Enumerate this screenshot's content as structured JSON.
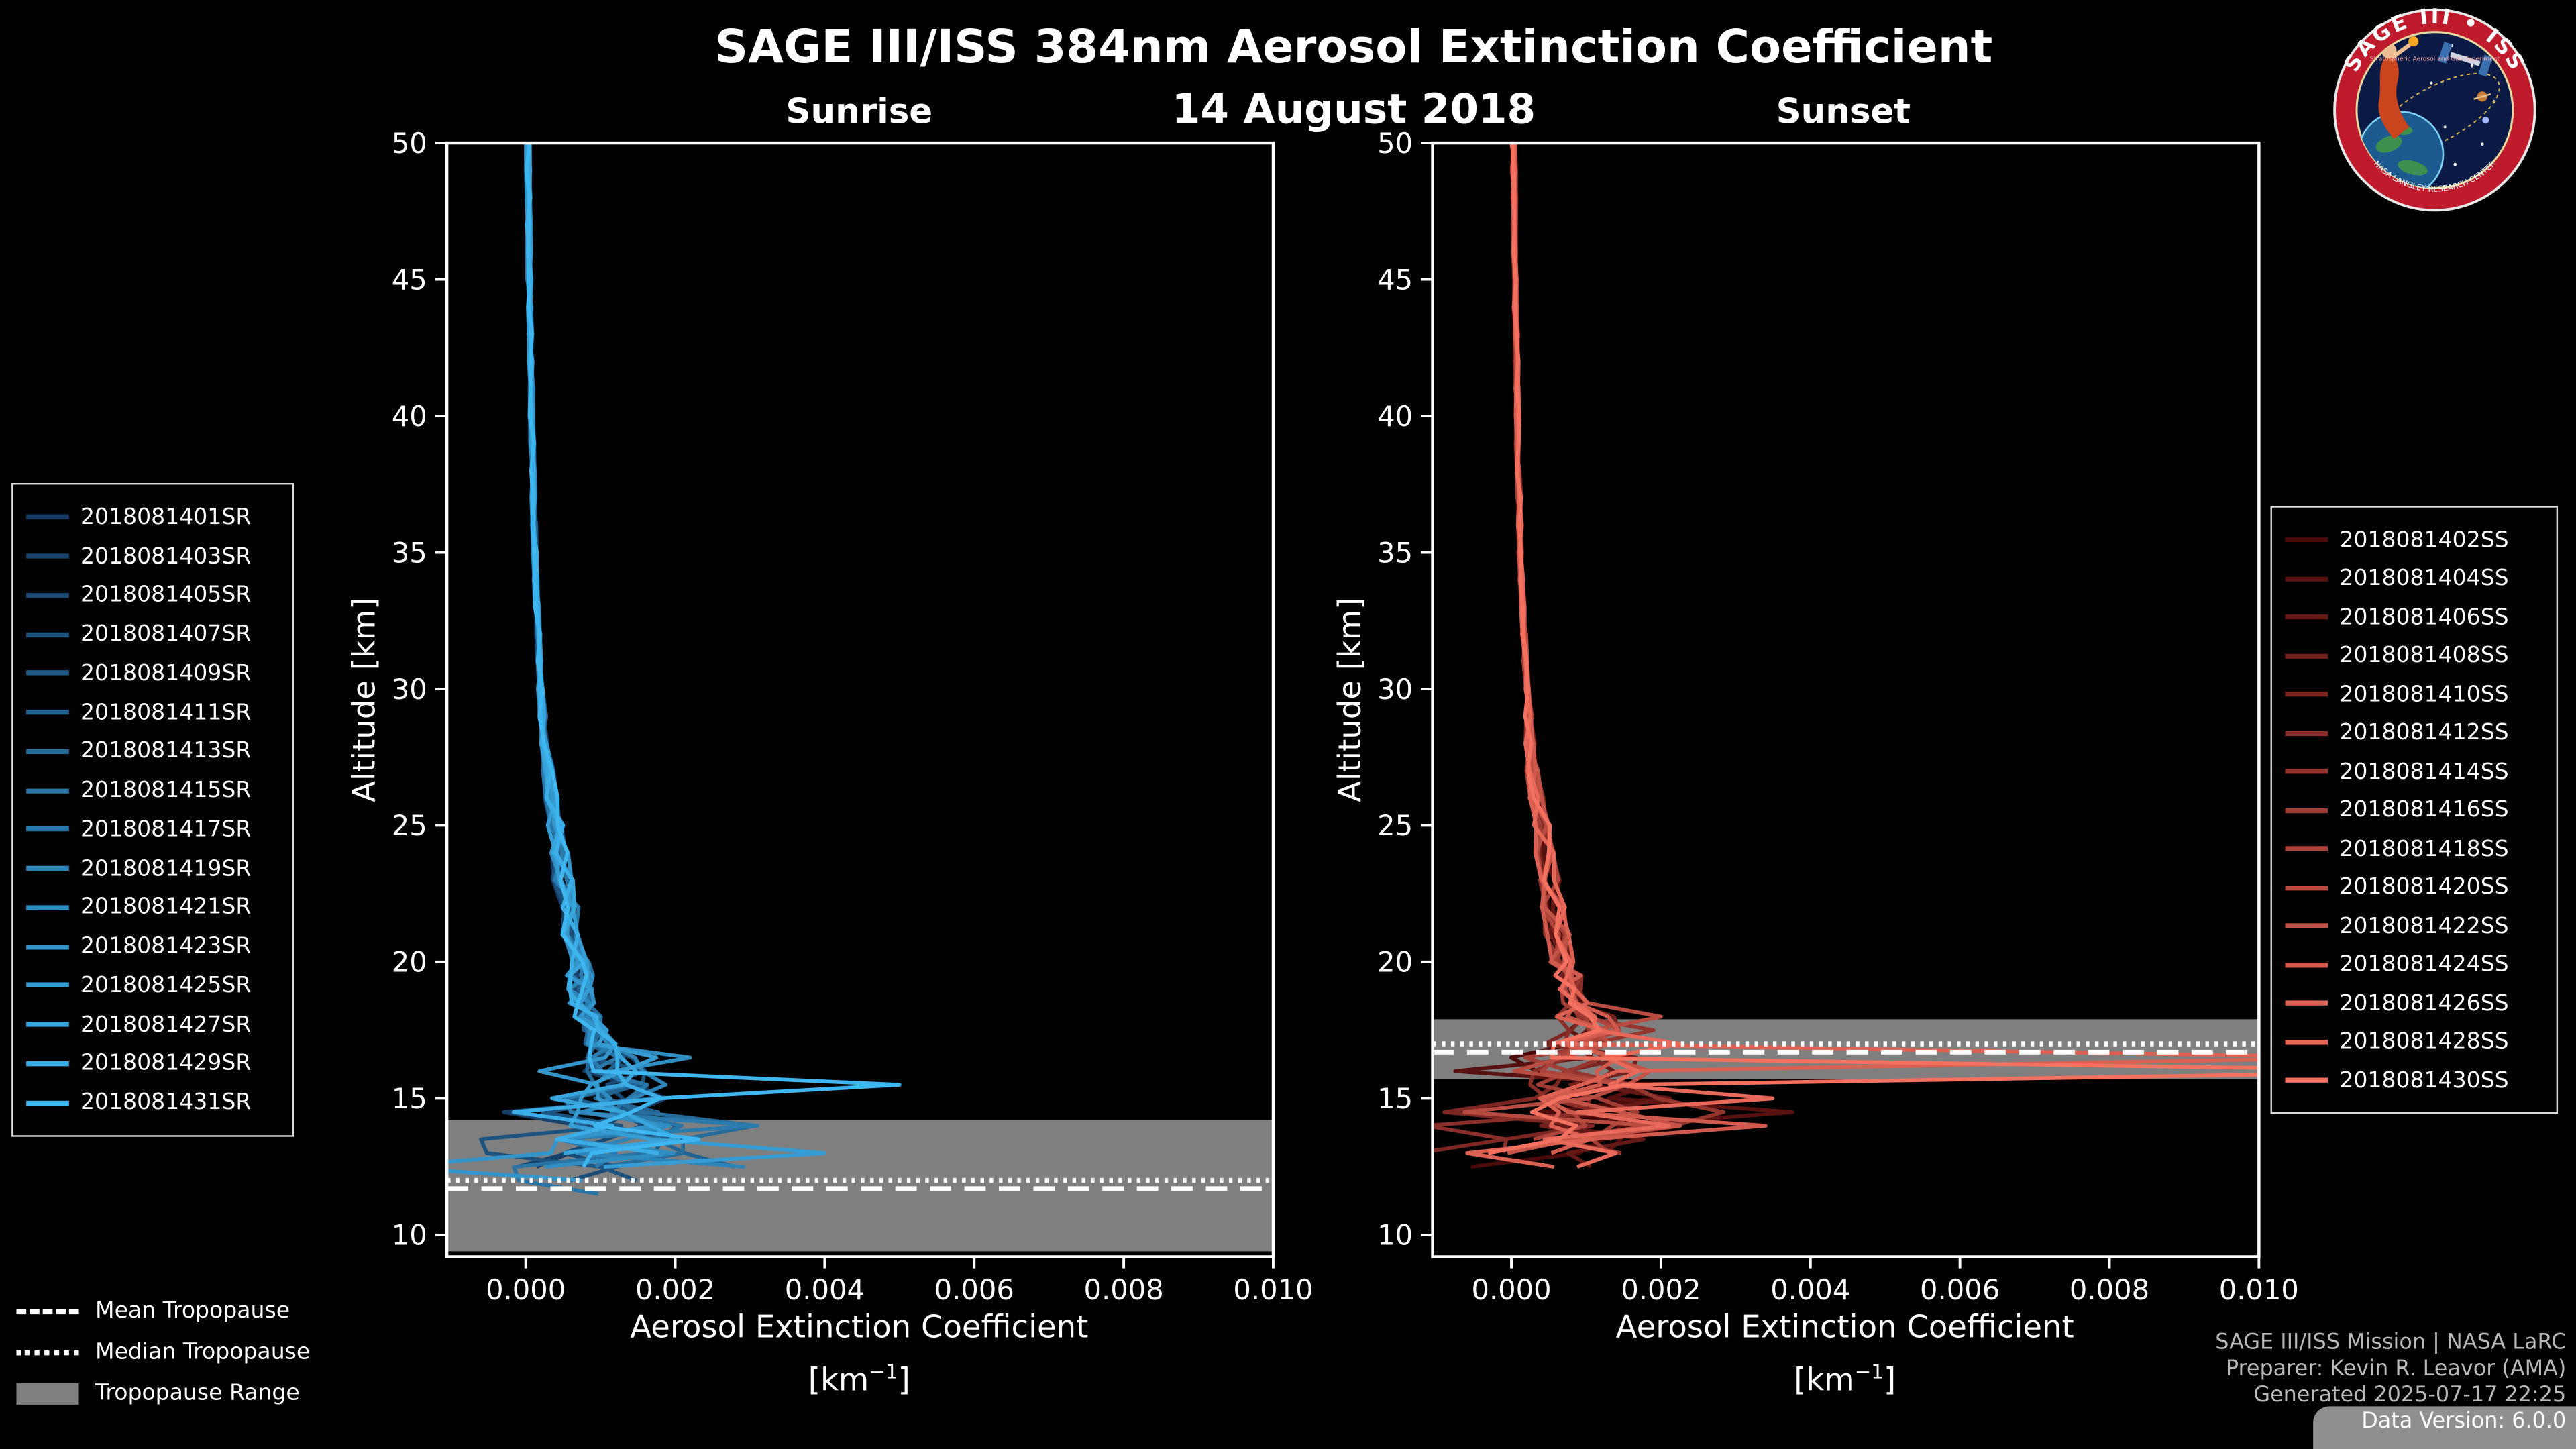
{
  "title": "SAGE III/ISS 384nm Aerosol Extinction Coefficient",
  "date": "14 August 2018",
  "colors": {
    "background": "#000000",
    "axis": "#ffffff",
    "text": "#ffffff",
    "tropopause_band": "#7f7f7f",
    "credits_text": "#b9b9b9",
    "corner_box": "#8f8f8f"
  },
  "tropopause_legend": {
    "mean_label": "Mean Tropopause",
    "median_label": "Median Tropopause",
    "range_label": "Tropopause Range"
  },
  "credits": {
    "line1": "SAGE III/ISS Mission | NASA LaRC",
    "line2": "Preparer: Kevin R. Leavor (AMA)",
    "line3": "Generated 2025-07-17 22:25",
    "line4": "Data Version: 6.0.0"
  },
  "logo": {
    "top_text": "SAGE III • ISS",
    "subtitle": "Stratospheric Aerosol and Gas Experiment",
    "bottom_text": "NASA LANGLEY RESEARCH CENTER"
  },
  "chart_data": [
    {
      "type": "line",
      "panel": "sunrise",
      "panel_title": "Sunrise",
      "xlabel": "Aerosol Extinction Coefficient",
      "xunit_base": "[km",
      "xunit_sup": "−1",
      "xunit_close": "]",
      "ylabel": "Altitude [km]",
      "xlim": [
        -0.001055,
        0.01
      ],
      "ylim": [
        9.2,
        50
      ],
      "xticks": [
        0,
        0.002,
        0.004,
        0.006,
        0.008,
        0.01
      ],
      "xtick_labels": [
        "0.000",
        "0.002",
        "0.004",
        "0.006",
        "0.008",
        "0.010"
      ],
      "yticks": [
        10,
        15,
        20,
        25,
        30,
        35,
        40,
        45,
        50
      ],
      "ytick_labels": [
        "10",
        "15",
        "20",
        "25",
        "30",
        "35",
        "40",
        "45",
        "50"
      ],
      "mean_tropopause": 11.7,
      "median_tropopause": 12.0,
      "tropopause_range": [
        9.4,
        14.2
      ],
      "seed": 20180814,
      "noise": {
        "chaos_top": 17.2,
        "chaos_max_amp": 0.00085,
        "end_alt_min": 11.3,
        "end_alt_max": 12.6
      },
      "base_profile": {
        "altitudes": [
          50,
          45,
          40,
          35,
          30,
          27,
          25,
          23,
          21,
          20,
          19,
          18,
          17,
          16.5,
          16,
          15.5,
          15,
          14.5,
          14,
          13.5,
          13,
          12.5,
          12,
          11.5,
          11.2
        ],
        "values": [
          3e-05,
          5e-05,
          8e-05,
          0.00012,
          0.0002,
          0.0003,
          0.0004,
          0.0005,
          0.00065,
          0.0007,
          0.00075,
          0.0008,
          0.001,
          0.0011,
          0.0012,
          0.0013,
          0.0012,
          0.0011,
          0.0012,
          0.0014,
          0.0012,
          0.0009,
          0.0007,
          0.0006,
          0.0005
        ]
      },
      "spikes": [
        {
          "series": 15,
          "alt": 15.5,
          "value": 0.005
        },
        {
          "series": 12,
          "alt": 13.1,
          "value": 0.004
        },
        {
          "series": 8,
          "alt": 14.0,
          "value": 0.0031
        },
        {
          "series": 10,
          "alt": 16.6,
          "value": 0.0022
        },
        {
          "series": 5,
          "alt": 12.4,
          "value": 0.0028
        },
        {
          "series": 3,
          "alt": 13.6,
          "value": -0.0006
        }
      ],
      "series": [
        {
          "name": "2018081401SR",
          "color": "#143A63"
        },
        {
          "name": "2018081403SR",
          "color": "#17426C"
        },
        {
          "name": "2018081405SR",
          "color": "#1A4A76"
        },
        {
          "name": "2018081407SR",
          "color": "#1C537F"
        },
        {
          "name": "2018081409SR",
          "color": "#1F5B89"
        },
        {
          "name": "2018081411SR",
          "color": "#226392"
        },
        {
          "name": "2018081413SR",
          "color": "#256C9B"
        },
        {
          "name": "2018081415SR",
          "color": "#2874A5"
        },
        {
          "name": "2018081417SR",
          "color": "#2A7CAE"
        },
        {
          "name": "2018081419SR",
          "color": "#2D84B8"
        },
        {
          "name": "2018081421SR",
          "color": "#308DC1"
        },
        {
          "name": "2018081423SR",
          "color": "#3395CA"
        },
        {
          "name": "2018081425SR",
          "color": "#369DD4"
        },
        {
          "name": "2018081427SR",
          "color": "#38A5DD"
        },
        {
          "name": "2018081429SR",
          "color": "#3BAEE7"
        },
        {
          "name": "2018081431SR",
          "color": "#3EB6F0"
        }
      ]
    },
    {
      "type": "line",
      "panel": "sunset",
      "panel_title": "Sunset",
      "xlabel": "Aerosol Extinction Coefficient",
      "xunit_base": "[km",
      "xunit_sup": "−1",
      "xunit_close": "]",
      "ylabel": "Altitude [km]",
      "xlim": [
        -0.001055,
        0.01
      ],
      "ylim": [
        9.2,
        50
      ],
      "xticks": [
        0,
        0.002,
        0.004,
        0.006,
        0.008,
        0.01
      ],
      "xtick_labels": [
        "0.000",
        "0.002",
        "0.004",
        "0.006",
        "0.008",
        "0.010"
      ],
      "yticks": [
        10,
        15,
        20,
        25,
        30,
        35,
        40,
        45,
        50
      ],
      "ytick_labels": [
        "10",
        "15",
        "20",
        "25",
        "30",
        "35",
        "40",
        "45",
        "50"
      ],
      "mean_tropopause": 16.7,
      "median_tropopause": 17.0,
      "tropopause_range": [
        15.7,
        17.9
      ],
      "seed": 20180815,
      "noise": {
        "chaos_top": 18.3,
        "chaos_max_amp": 0.00085,
        "end_alt_min": 12.1,
        "end_alt_max": 13.4
      },
      "base_profile": {
        "altitudes": [
          50,
          45,
          40,
          35,
          30,
          27,
          25,
          23,
          21,
          20,
          19,
          18.5,
          18,
          17.5,
          17,
          16.5,
          16,
          15.5,
          15,
          14.5,
          14,
          13.5,
          13,
          12.5,
          12
        ],
        "values": [
          3e-05,
          5e-05,
          8e-05,
          0.00012,
          0.0002,
          0.00028,
          0.0004,
          0.0005,
          0.00062,
          0.0007,
          0.00078,
          0.0009,
          0.001,
          0.0011,
          0.001,
          0.00095,
          0.001,
          0.0011,
          0.0012,
          0.0011,
          0.0012,
          0.0008,
          0.0006,
          0.0005,
          0.0005
        ]
      },
      "spikes": [
        {
          "series": 14,
          "alt": 16.0,
          "value": 0.013
        },
        {
          "series": 12,
          "alt": 16.3,
          "value": 0.0115
        },
        {
          "series": 9,
          "alt": 17.9,
          "value": 0.002
        },
        {
          "series": 6,
          "alt": 17.6,
          "value": 0.0019
        },
        {
          "series": 11,
          "alt": 13.9,
          "value": 0.0034
        },
        {
          "series": 4,
          "alt": 14.6,
          "value": -0.0009
        }
      ],
      "series": [
        {
          "name": "2018081402SS",
          "color": "#4D0A0A"
        },
        {
          "name": "2018081404SS",
          "color": "#591110"
        },
        {
          "name": "2018081406SS",
          "color": "#651916"
        },
        {
          "name": "2018081408SS",
          "color": "#71201C"
        },
        {
          "name": "2018081410SS",
          "color": "#7D2722"
        },
        {
          "name": "2018081412SS",
          "color": "#892E28"
        },
        {
          "name": "2018081414SS",
          "color": "#95362E"
        },
        {
          "name": "2018081416SS",
          "color": "#A13D35"
        },
        {
          "name": "2018081418SS",
          "color": "#AC443B"
        },
        {
          "name": "2018081420SS",
          "color": "#B84C41"
        },
        {
          "name": "2018081422SS",
          "color": "#C45347"
        },
        {
          "name": "2018081424SS",
          "color": "#D05A4D"
        },
        {
          "name": "2018081426SS",
          "color": "#DC6153"
        },
        {
          "name": "2018081428SS",
          "color": "#E86959"
        },
        {
          "name": "2018081430SS",
          "color": "#F4705F"
        }
      ]
    }
  ]
}
